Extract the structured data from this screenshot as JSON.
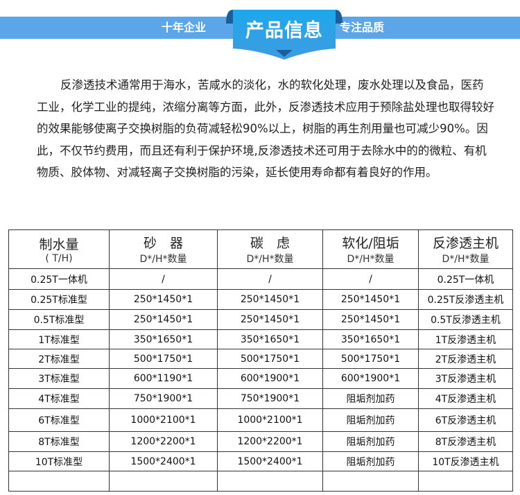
{
  "header": {
    "left": "十年企业",
    "title": "产品信息",
    "right": "专注品质",
    "accent": "#5ba5e9"
  },
  "intro": "反渗透技术通常用于海水，苦咸水的淡化，水的软化处理，废水处理以及食品，医药工业，化学工业的提纯，浓缩分离等方面，此外，反渗透技术应用于预除盐处理也取得较好的效果能够使离子交换树脂的负荷减轻松90%以上，树脂的再生剂用量也可减少90%。因此，不仅节约费用，而且还有利于保护环境,反渗透技术还可用于去除水中的的微粒、有机物质、胶体物、对减轻离子交换树脂的污染，延长使用寿命都有着良好的作用。",
  "table": {
    "headers": [
      {
        "title": "制水量",
        "sub": "( T/H)"
      },
      {
        "title": "砂　器",
        "sub": "D*/H*数量"
      },
      {
        "title": "碳　虑",
        "sub": "D*/H*数量"
      },
      {
        "title": "软化/阻垢",
        "sub": "D*/H*数量"
      },
      {
        "title": "反渗透主机",
        "sub": "D*/H*数量"
      }
    ],
    "rows": [
      [
        "0.25T一体机",
        "/",
        "/",
        "/",
        "0.25T一体机"
      ],
      [
        "0.25T标准型",
        "250*1450*1",
        "250*1450*1",
        "250*1450*1",
        "0.25T反渗透主机"
      ],
      [
        "0.5T标准型",
        "250*1450*1",
        "250*1450*1",
        "250*1450*1",
        "0.5T反渗透主机"
      ],
      [
        "1T标准型",
        "350*1650*1",
        "350*1650*1",
        "350*1650*1",
        "1T反渗透主机"
      ],
      [
        "2T标准型",
        "500*1750*1",
        "500*1750*1",
        "500*1750*1",
        "2T反渗透主机"
      ],
      [
        "3T标准型",
        "600*1190*1",
        "600*1900*1",
        "600*1900*1",
        "3T反渗透主机"
      ],
      [
        "4T标准型",
        "750*1900*1",
        "750*1900*1",
        "阻垢剂加药",
        "4T反渗透主机"
      ],
      [
        "6T标准型",
        "1000*2100*1",
        "1000*2100*1",
        "阻垢剂加药",
        "6T反渗透主机"
      ],
      [
        "8T标准型",
        "1200*2200*1",
        "1200*2200*1",
        "阻垢剂加药",
        "8T反渗透主机"
      ],
      [
        "10T标准型",
        "1500*2400*1",
        "1500*2400*1",
        "阻垢剂加药",
        "10T反渗透主机"
      ],
      [
        "",
        "",
        "",
        "",
        ""
      ]
    ]
  }
}
